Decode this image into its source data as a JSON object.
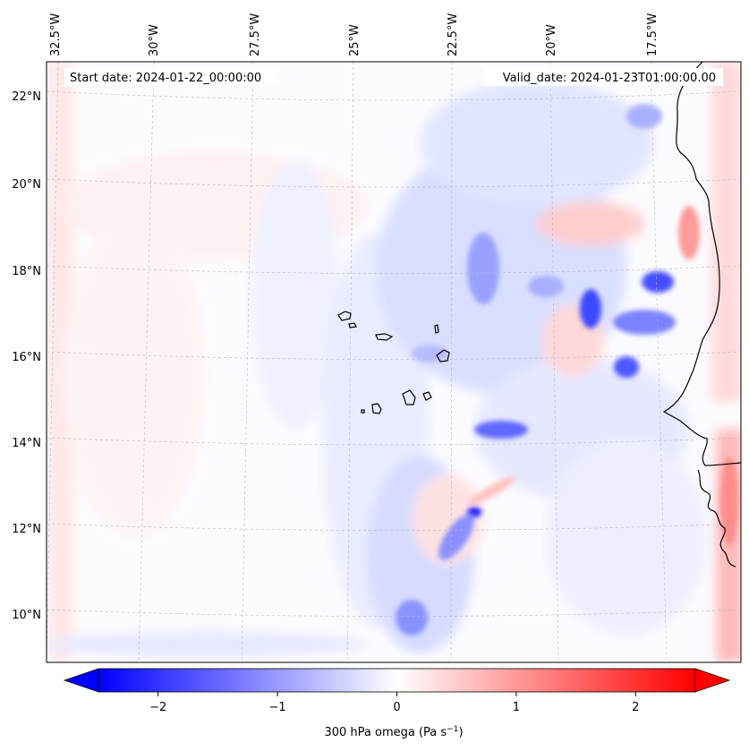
{
  "header": {
    "start_date": "Start date: 2024-01-22_00:00:00",
    "valid_date": "Valid_date: 2024-01-23T01:00:00.00"
  },
  "map": {
    "longitude_labels": [
      "32.5°W",
      "30°W",
      "27.5°W",
      "25°W",
      "22.5°W",
      "20°W",
      "17.5°W"
    ],
    "latitude_labels": [
      "22°N",
      "20°N",
      "18°N",
      "16°N",
      "14°N",
      "12°N",
      "10°N"
    ],
    "gridlines": true,
    "field": "300 hPa omega",
    "units": "Pa s-1",
    "colormap": "bwr",
    "vmin": -2.5,
    "vmax": 2.5
  },
  "colorbar": {
    "label": "300 hPa omega (Pa s",
    "label_sup": "−1",
    "label_close": ")",
    "tick_labels": [
      "−2",
      "−1",
      "0",
      "1",
      "2"
    ],
    "tick_values": [
      -2,
      -1,
      0,
      1,
      2
    ],
    "extend": "both"
  }
}
